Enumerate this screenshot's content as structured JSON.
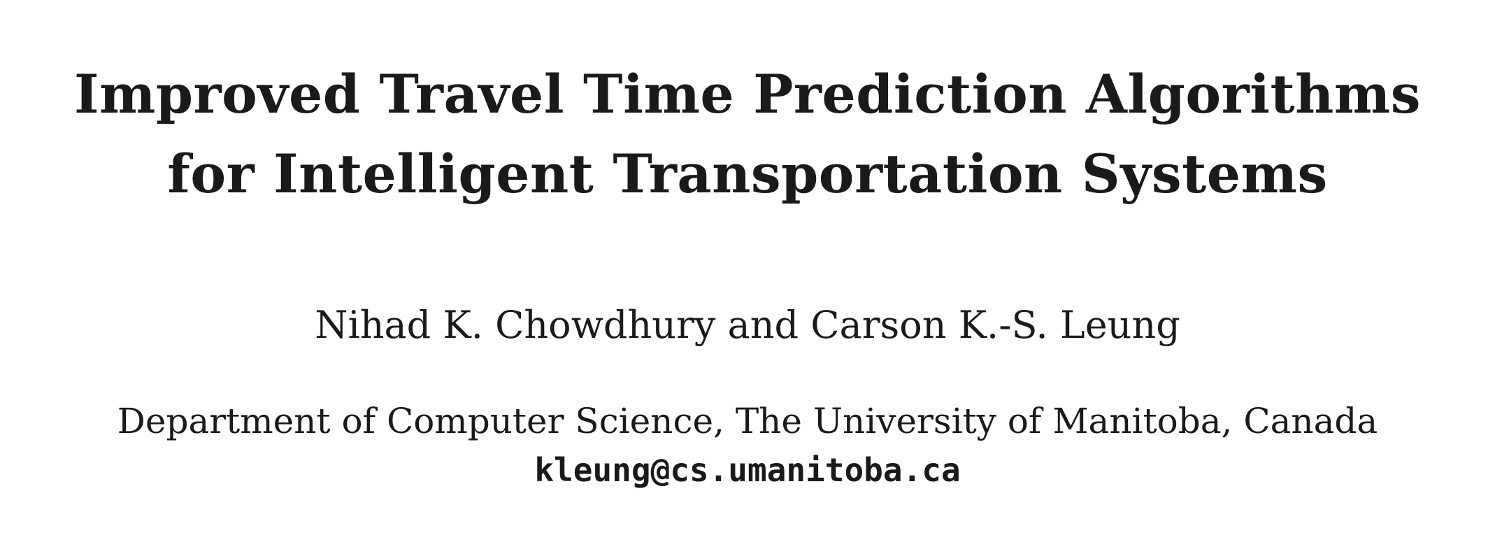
{
  "paper": {
    "title_lines": [
      "Improved Travel Time Prediction Algorithms",
      "for Intelligent Transportation Systems"
    ],
    "authors": "Nihad K. Chowdhury and Carson K.-S. Leung",
    "affiliation": "Department of Computer Science, The University of Manitoba, Canada",
    "email": "kleung@cs.umanitoba.ca"
  }
}
